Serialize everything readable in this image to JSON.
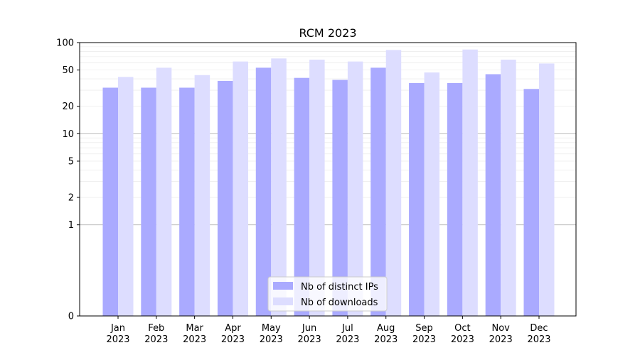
{
  "chart_data": {
    "type": "bar",
    "title": "RCM 2023",
    "xlabel": "",
    "ylabel": "",
    "yscale": "symlog",
    "ylim": [
      0,
      100
    ],
    "yticks": [
      0,
      1,
      2,
      5,
      10,
      20,
      50,
      100
    ],
    "ytick_labels": [
      "0",
      "1",
      "2",
      "5",
      "10",
      "20",
      "50",
      "100"
    ],
    "grid": true,
    "legend_position": "bottom-center",
    "categories": [
      "Jan\n2023",
      "Feb\n2023",
      "Mar\n2023",
      "Apr\n2023",
      "May\n2023",
      "Jun\n2023",
      "Jul\n2023",
      "Aug\n2023",
      "Sep\n2023",
      "Oct\n2023",
      "Nov\n2023",
      "Dec\n2023"
    ],
    "series": [
      {
        "name": "Nb of distinct IPs",
        "color": "#aaaaff",
        "values": [
          32,
          32,
          32,
          38,
          53,
          41,
          39,
          53,
          36,
          36,
          45,
          31
        ]
      },
      {
        "name": "Nb of downloads",
        "color": "#ddddff",
        "values": [
          42,
          53,
          44,
          62,
          67,
          65,
          62,
          83,
          47,
          84,
          65,
          59
        ]
      }
    ]
  }
}
